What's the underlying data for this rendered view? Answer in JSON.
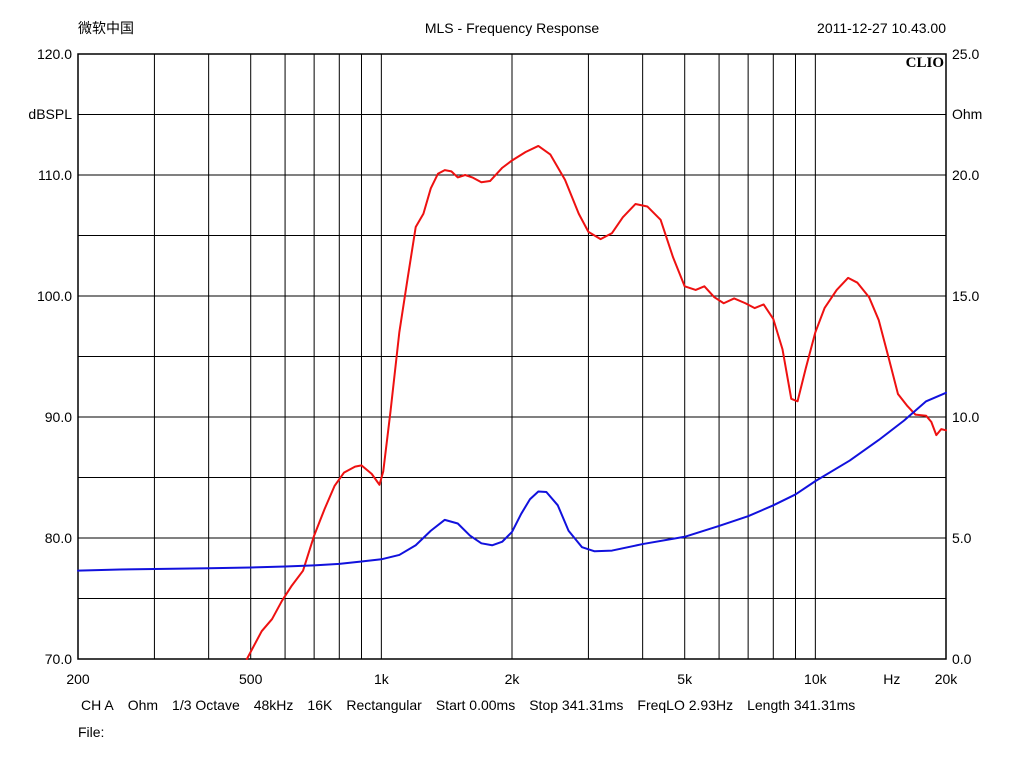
{
  "header": {
    "left": "微软中国",
    "title": "MLS - Frequency Response",
    "timestamp": "2011-12-27 10.43.00",
    "brand": "CLIO"
  },
  "footer": {
    "channel": "CH A",
    "unit": "Ohm",
    "smoothing": "1/3 Octave",
    "sample_rate": "48kHz",
    "size": "16K",
    "window": "Rectangular",
    "start": "Start 0.00ms",
    "stop": "Stop 341.31ms",
    "freqlo": "FreqLO 2.93Hz",
    "length": "Length 341.31ms",
    "file_label": "File:"
  },
  "chart_data": {
    "type": "line",
    "title": "MLS - Frequency Response",
    "x_scale": "log",
    "xlim": [
      200,
      20000
    ],
    "x_tick_labels": [
      {
        "value": 200,
        "label": "200"
      },
      {
        "value": 500,
        "label": "500"
      },
      {
        "value": 1000,
        "label": "1k"
      },
      {
        "value": 2000,
        "label": "2k"
      },
      {
        "value": 5000,
        "label": "5k"
      },
      {
        "value": 10000,
        "label": "10k"
      },
      {
        "value": 15000,
        "label": "Hz"
      },
      {
        "value": 20000,
        "label": "20k"
      }
    ],
    "x_gridlines": [
      200,
      300,
      400,
      500,
      600,
      700,
      800,
      900,
      1000,
      2000,
      3000,
      4000,
      5000,
      6000,
      7000,
      8000,
      9000,
      10000,
      20000
    ],
    "y_left": {
      "label": "dBSPL",
      "lim": [
        70,
        120
      ],
      "ticks": [
        {
          "value": 120,
          "label": "120.0"
        },
        {
          "value": 110,
          "label": "110.0"
        },
        {
          "value": 100,
          "label": "100.0"
        },
        {
          "value": 90,
          "label": "90.0"
        },
        {
          "value": 80,
          "label": "80.0"
        },
        {
          "value": 70,
          "label": "70.0"
        }
      ]
    },
    "y_right": {
      "label": "Ohm",
      "lim": [
        0,
        25
      ],
      "ticks": [
        {
          "value": 25,
          "label": "25.0"
        },
        {
          "value": 20,
          "label": "20.0"
        },
        {
          "value": 15,
          "label": "15.0"
        },
        {
          "value": 10,
          "label": "10.0"
        },
        {
          "value": 5,
          "label": "5.0"
        },
        {
          "value": 0,
          "label": "0.0"
        }
      ]
    },
    "y_gridlines_left": [
      75,
      80,
      85,
      90,
      95,
      100,
      105,
      110,
      115
    ],
    "grid": true,
    "series": [
      {
        "axis": "left",
        "color": "#ee1111",
        "points": [
          [
            490,
            70.0
          ],
          [
            530,
            72.3
          ],
          [
            560,
            73.3
          ],
          [
            590,
            74.8
          ],
          [
            620,
            76.0
          ],
          [
            660,
            77.3
          ],
          [
            700,
            80.2
          ],
          [
            740,
            82.4
          ],
          [
            780,
            84.3
          ],
          [
            820,
            85.4
          ],
          [
            870,
            85.9
          ],
          [
            900,
            86.0
          ],
          [
            950,
            85.3
          ],
          [
            990,
            84.4
          ],
          [
            1010,
            85.5
          ],
          [
            1050,
            90.5
          ],
          [
            1100,
            97.0
          ],
          [
            1150,
            101.5
          ],
          [
            1200,
            105.7
          ],
          [
            1250,
            106.8
          ],
          [
            1300,
            108.9
          ],
          [
            1350,
            110.1
          ],
          [
            1400,
            110.4
          ],
          [
            1450,
            110.3
          ],
          [
            1500,
            109.8
          ],
          [
            1560,
            110.0
          ],
          [
            1620,
            109.8
          ],
          [
            1700,
            109.4
          ],
          [
            1780,
            109.5
          ],
          [
            1900,
            110.6
          ],
          [
            2000,
            111.2
          ],
          [
            2150,
            111.9
          ],
          [
            2300,
            112.4
          ],
          [
            2450,
            111.7
          ],
          [
            2650,
            109.6
          ],
          [
            2850,
            106.8
          ],
          [
            3000,
            105.3
          ],
          [
            3200,
            104.7
          ],
          [
            3400,
            105.2
          ],
          [
            3600,
            106.5
          ],
          [
            3850,
            107.6
          ],
          [
            4100,
            107.4
          ],
          [
            4400,
            106.3
          ],
          [
            4700,
            103.2
          ],
          [
            5000,
            100.8
          ],
          [
            5300,
            100.5
          ],
          [
            5550,
            100.8
          ],
          [
            5850,
            99.9
          ],
          [
            6150,
            99.4
          ],
          [
            6500,
            99.8
          ],
          [
            6900,
            99.4
          ],
          [
            7250,
            99.0
          ],
          [
            7600,
            99.3
          ],
          [
            8000,
            98.1
          ],
          [
            8400,
            95.6
          ],
          [
            8800,
            91.5
          ],
          [
            9100,
            91.3
          ],
          [
            9500,
            94.0
          ],
          [
            10000,
            97.0
          ],
          [
            10500,
            99.0
          ],
          [
            11200,
            100.5
          ],
          [
            11900,
            101.5
          ],
          [
            12500,
            101.1
          ],
          [
            13300,
            99.9
          ],
          [
            14000,
            98.0
          ],
          [
            14800,
            94.7
          ],
          [
            15500,
            91.9
          ],
          [
            16300,
            90.9
          ],
          [
            17000,
            90.2
          ],
          [
            18000,
            90.1
          ],
          [
            18500,
            89.6
          ],
          [
            19000,
            88.5
          ],
          [
            19500,
            89.0
          ],
          [
            20000,
            88.9
          ]
        ]
      },
      {
        "axis": "right",
        "color": "#1111dd",
        "points": [
          [
            200,
            3.65
          ],
          [
            250,
            3.7
          ],
          [
            300,
            3.72
          ],
          [
            400,
            3.75
          ],
          [
            500,
            3.78
          ],
          [
            600,
            3.82
          ],
          [
            700,
            3.87
          ],
          [
            800,
            3.93
          ],
          [
            900,
            4.03
          ],
          [
            1000,
            4.12
          ],
          [
            1100,
            4.3
          ],
          [
            1200,
            4.7
          ],
          [
            1300,
            5.3
          ],
          [
            1400,
            5.75
          ],
          [
            1500,
            5.6
          ],
          [
            1600,
            5.1
          ],
          [
            1700,
            4.78
          ],
          [
            1800,
            4.7
          ],
          [
            1900,
            4.85
          ],
          [
            2000,
            5.25
          ],
          [
            2100,
            6.0
          ],
          [
            2200,
            6.6
          ],
          [
            2300,
            6.92
          ],
          [
            2400,
            6.9
          ],
          [
            2550,
            6.35
          ],
          [
            2700,
            5.3
          ],
          [
            2900,
            4.62
          ],
          [
            3100,
            4.45
          ],
          [
            3400,
            4.48
          ],
          [
            4000,
            4.75
          ],
          [
            5000,
            5.05
          ],
          [
            6000,
            5.5
          ],
          [
            7000,
            5.9
          ],
          [
            8000,
            6.35
          ],
          [
            9000,
            6.8
          ],
          [
            10000,
            7.35
          ],
          [
            12000,
            8.2
          ],
          [
            14000,
            9.05
          ],
          [
            16000,
            9.85
          ],
          [
            18000,
            10.65
          ],
          [
            20000,
            11.0
          ]
        ]
      }
    ]
  }
}
